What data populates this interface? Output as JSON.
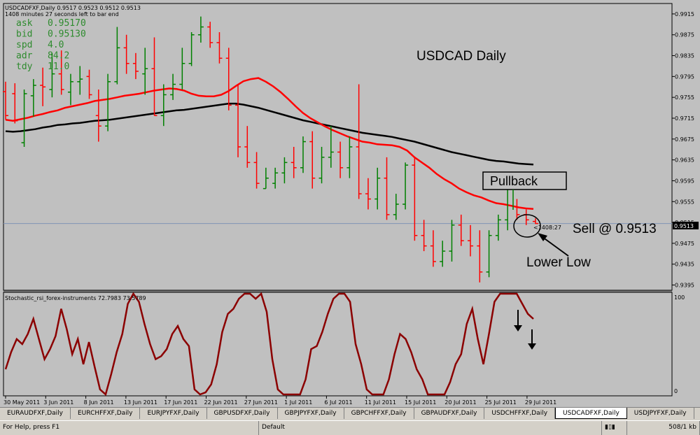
{
  "header": {
    "symbol_line": "USDCADFXF,Daily  0.9517 0.9523 0.9512 0.9513",
    "timer_line": "1408 minutes 27 seconds left to bar end"
  },
  "info_panel": [
    {
      "label": "ask",
      "value": "0.95170"
    },
    {
      "label": "bid",
      "value": "0.95130"
    },
    {
      "label": "spd",
      "value": "4.0"
    },
    {
      "label": "adr",
      "value": "84.2"
    },
    {
      "label": "tdy",
      "value": "11.0"
    }
  ],
  "annotations": {
    "title": "USDCAD Daily",
    "pullback": "Pullback",
    "sell": "Sell @ 0.9513",
    "lower_low": "Lower Low",
    "countdown": "<1408:27",
    "price_marker": "0.9513"
  },
  "indicator": {
    "label": "Stochastic_rsi_forex-instruments 72.7983 73.5789",
    "scale_top": "100",
    "scale_bottom": "0"
  },
  "colors": {
    "bg": "#c0c0c0",
    "bull": "#008000",
    "bear": "#ff0000",
    "ma_fast": "#ff0000",
    "ma_slow": "#000000",
    "stoch": "#8b0000"
  },
  "chart_data": {
    "type": "line",
    "price_axis": [
      "0.9915",
      "0.9875",
      "0.9835",
      "0.9795",
      "0.9755",
      "0.9715",
      "0.9675",
      "0.9635",
      "0.9595",
      "0.9555",
      "0.9515",
      "0.9475",
      "0.9435",
      "0.9395"
    ],
    "ylim": [
      0.9385,
      0.9935
    ],
    "date_labels": [
      {
        "i": 0,
        "label": "30 May 2011"
      },
      {
        "i": 3,
        "label": "3 Jun 2011"
      },
      {
        "i": 6,
        "label": "8 Jun 2011"
      },
      {
        "i": 9,
        "label": "13 Jun 2011"
      },
      {
        "i": 12,
        "label": "17 Jun 2011"
      },
      {
        "i": 15,
        "label": "22 Jun 2011"
      },
      {
        "i": 18,
        "label": "27 Jun 2011"
      },
      {
        "i": 21,
        "label": "1 Jul 2011"
      },
      {
        "i": 24,
        "label": "6 Jul 2011"
      },
      {
        "i": 27,
        "label": "11 Jul 2011"
      },
      {
        "i": 30,
        "label": "15 Jul 2011"
      },
      {
        "i": 33,
        "label": "20 Jul 2011"
      },
      {
        "i": 36,
        "label": "25 Jul 2011"
      },
      {
        "i": 39,
        "label": "29 Jul 2011"
      }
    ],
    "bars": [
      [
        0.9766,
        0.9785,
        0.9712,
        0.972
      ],
      [
        0.9762,
        0.9782,
        0.9705,
        0.971
      ],
      [
        0.9668,
        0.977,
        0.966,
        0.9762
      ],
      [
        0.9758,
        0.979,
        0.9718,
        0.9778
      ],
      [
        0.9778,
        0.9812,
        0.9738,
        0.9775
      ],
      [
        0.977,
        0.984,
        0.9755,
        0.98
      ],
      [
        0.98,
        0.9845,
        0.976,
        0.977
      ],
      [
        0.9765,
        0.98,
        0.974,
        0.9785
      ],
      [
        0.9785,
        0.9815,
        0.976,
        0.979
      ],
      [
        0.9795,
        0.9808,
        0.9752,
        0.976
      ],
      [
        0.972,
        0.977,
        0.967,
        0.97
      ],
      [
        0.97,
        0.98,
        0.969,
        0.9785
      ],
      [
        0.9785,
        0.989,
        0.978,
        0.985
      ],
      [
        0.985,
        0.9875,
        0.98,
        0.982
      ],
      [
        0.982,
        0.984,
        0.979,
        0.9805
      ],
      [
        0.98,
        0.985,
        0.976,
        0.981
      ],
      [
        0.981,
        0.987,
        0.972,
        0.972
      ],
      [
        0.972,
        0.978,
        0.97,
        0.976
      ],
      [
        0.976,
        0.98,
        0.975,
        0.978
      ],
      [
        0.978,
        0.985,
        0.977,
        0.982
      ],
      [
        0.982,
        0.988,
        0.9815,
        0.9875
      ],
      [
        0.9875,
        0.991,
        0.986,
        0.989
      ],
      [
        0.989,
        0.99,
        0.985,
        0.986
      ],
      [
        0.986,
        0.988,
        0.982,
        0.983
      ],
      [
        0.983,
        0.985,
        0.973,
        0.974
      ],
      [
        0.974,
        0.978,
        0.964,
        0.966
      ],
      [
        0.966,
        0.97,
        0.962,
        0.963
      ],
      [
        0.963,
        0.965,
        0.958,
        0.959
      ],
      [
        0.958,
        0.962,
        0.958,
        0.96
      ],
      [
        0.959,
        0.962,
        0.958,
        0.961
      ],
      [
        0.961,
        0.964,
        0.959,
        0.963
      ],
      [
        0.963,
        0.966,
        0.96,
        0.962
      ],
      [
        0.962,
        0.968,
        0.961,
        0.967
      ],
      [
        0.967,
        0.969,
        0.958,
        0.96
      ],
      [
        0.96,
        0.966,
        0.959,
        0.964
      ],
      [
        0.964,
        0.97,
        0.962,
        0.965
      ],
      [
        0.965,
        0.967,
        0.96,
        0.962
      ],
      [
        0.962,
        0.968,
        0.96,
        0.966
      ],
      [
        0.966,
        0.978,
        0.956,
        0.957
      ],
      [
        0.957,
        0.96,
        0.954,
        0.956
      ],
      [
        0.956,
        0.962,
        0.954,
        0.96
      ],
      [
        0.96,
        0.964,
        0.952,
        0.953
      ],
      [
        0.953,
        0.957,
        0.952,
        0.955
      ],
      [
        0.955,
        0.963,
        0.954,
        0.9625
      ],
      [
        0.9625,
        0.964,
        0.948,
        0.949
      ],
      [
        0.949,
        0.952,
        0.946,
        0.947
      ],
      [
        0.947,
        0.95,
        0.943,
        0.944
      ],
      [
        0.944,
        0.948,
        0.943,
        0.946
      ],
      [
        0.946,
        0.952,
        0.944,
        0.951
      ],
      [
        0.951,
        0.953,
        0.947,
        0.948
      ],
      [
        0.948,
        0.951,
        0.945,
        0.947
      ],
      [
        0.947,
        0.95,
        0.94,
        0.942
      ],
      [
        0.942,
        0.95,
        0.941,
        0.949
      ],
      [
        0.949,
        0.953,
        0.948,
        0.952
      ],
      [
        0.952,
        0.96,
        0.95,
        0.958
      ],
      [
        0.958,
        0.956,
        0.952,
        0.953
      ],
      [
        0.953,
        0.954,
        0.951,
        0.952
      ],
      [
        0.9517,
        0.9523,
        0.9512,
        0.9513
      ]
    ],
    "ma_fast": [
      0.9712,
      0.971,
      0.9713,
      0.9716,
      0.972,
      0.9723,
      0.9727,
      0.973,
      0.9735,
      0.9738,
      0.9741,
      0.9744,
      0.9748,
      0.975,
      0.9752,
      0.9755,
      0.9758,
      0.976,
      0.9762,
      0.9765,
      0.9768,
      0.977,
      0.9772,
      0.9771,
      0.9768,
      0.9762,
      0.9758,
      0.9757,
      0.9757,
      0.976,
      0.9767,
      0.9777,
      0.9786,
      0.979,
      0.9792,
      0.9785,
      0.9776,
      0.9765,
      0.9752,
      0.9738,
      0.9725,
      0.9715,
      0.9707,
      0.9699,
      0.9692,
      0.9686,
      0.968,
      0.9675,
      0.967,
      0.9668,
      0.9665,
      0.9664,
      0.9663,
      0.966,
      0.9653,
      0.964,
      0.963,
      0.962,
      0.9608,
      0.9598,
      0.959,
      0.958,
      0.9573,
      0.9567,
      0.9563,
      0.9557,
      0.9552,
      0.955,
      0.9547,
      0.9544,
      0.9542,
      0.9541
    ],
    "ma_slow": [
      0.969,
      0.9689,
      0.969,
      0.9692,
      0.9694,
      0.9697,
      0.9699,
      0.9702,
      0.9703,
      0.9705,
      0.9706,
      0.9708,
      0.971,
      0.9711,
      0.9712,
      0.9714,
      0.9716,
      0.9718,
      0.972,
      0.9722,
      0.9724,
      0.9726,
      0.9728,
      0.973,
      0.9731,
      0.9733,
      0.9735,
      0.9737,
      0.9739,
      0.9741,
      0.9743,
      0.9743,
      0.9741,
      0.9738,
      0.9735,
      0.9731,
      0.9727,
      0.9723,
      0.9719,
      0.9715,
      0.9711,
      0.9708,
      0.9705,
      0.9702,
      0.9699,
      0.9696,
      0.9693,
      0.969,
      0.9687,
      0.9685,
      0.9683,
      0.9681,
      0.9679,
      0.9676,
      0.9673,
      0.967,
      0.9666,
      0.9662,
      0.9658,
      0.9654,
      0.965,
      0.9647,
      0.9644,
      0.9641,
      0.9638,
      0.9635,
      0.9633,
      0.9632,
      0.963,
      0.9628,
      0.9627,
      0.9626
    ],
    "stoch": [
      25,
      42,
      55,
      50,
      60,
      75,
      55,
      35,
      45,
      58,
      85,
      65,
      40,
      55,
      30,
      52,
      28,
      5,
      0,
      20,
      42,
      60,
      90,
      100,
      92,
      70,
      50,
      35,
      38,
      45,
      60,
      68,
      55,
      48,
      5,
      0,
      2,
      10,
      30,
      62,
      80,
      85,
      95,
      100,
      100,
      95,
      100,
      82,
      35,
      5,
      0,
      0,
      0,
      0,
      15,
      45,
      48,
      62,
      80,
      95,
      100,
      100,
      92,
      50,
      30,
      5,
      0,
      0,
      0,
      15,
      40,
      60,
      55,
      42,
      25,
      15,
      0,
      0,
      0,
      0,
      12,
      30,
      40,
      70,
      85,
      55,
      30,
      60,
      92,
      100,
      100,
      100,
      100,
      90,
      80,
      75
    ],
    "stoch_ylim": [
      0,
      100
    ]
  }
}
